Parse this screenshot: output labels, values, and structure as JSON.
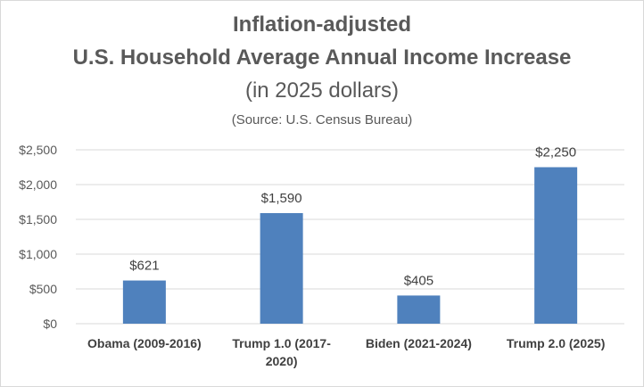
{
  "chart_data": {
    "type": "bar",
    "title_lines": [
      "Inflation-adjusted",
      "U.S. Household Average Annual Income Increase"
    ],
    "subtitle": "(in 2025 dollars)",
    "source_note": "(Source: U.S. Census Bureau)",
    "categories": [
      [
        "Obama (2009-2016)"
      ],
      [
        "Trump 1.0 (2017-",
        "2020)"
      ],
      [
        "Biden (2021-2024)"
      ],
      [
        "Trump 2.0 (2025)"
      ]
    ],
    "values": [
      621,
      1590,
      405,
      2250
    ],
    "data_labels": [
      "$621",
      "$1,590",
      "$405",
      "$2,250"
    ],
    "ylim": [
      0,
      2500
    ],
    "yticks": [
      0,
      500,
      1000,
      1500,
      2000,
      2500
    ],
    "ytick_labels": [
      "$0",
      "$500",
      "$1,000",
      "$1,500",
      "$2,000",
      "$2,500"
    ],
    "grid": true,
    "legend": "none",
    "bar_color": "#4f81bd",
    "grid_color": "#d9d9d9",
    "xlabel": "",
    "ylabel": ""
  }
}
